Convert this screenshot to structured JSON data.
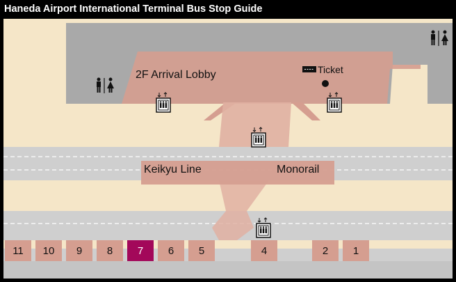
{
  "title": "Haneda Airport International Terminal Bus Stop Guide",
  "labels": {
    "arrival_lobby": "2F Arrival Lobby",
    "ticket": "Ticket",
    "keikyu": "Keikyu Line",
    "monorail": "Monorail"
  },
  "bus_stops": [
    "11",
    "10",
    "9",
    "8",
    "7",
    "6",
    "5",
    "4",
    "2",
    "1"
  ],
  "selected_stop": "7",
  "icons": [
    "restroom-icon",
    "elevator-icon",
    "ticket-icon",
    "location-dot-icon"
  ],
  "colors": {
    "background": "#f5e6c8",
    "road": "#cfcfcf",
    "building": "#a9a9a9",
    "walkway": "#d59e90",
    "selected": "#a3085a"
  }
}
